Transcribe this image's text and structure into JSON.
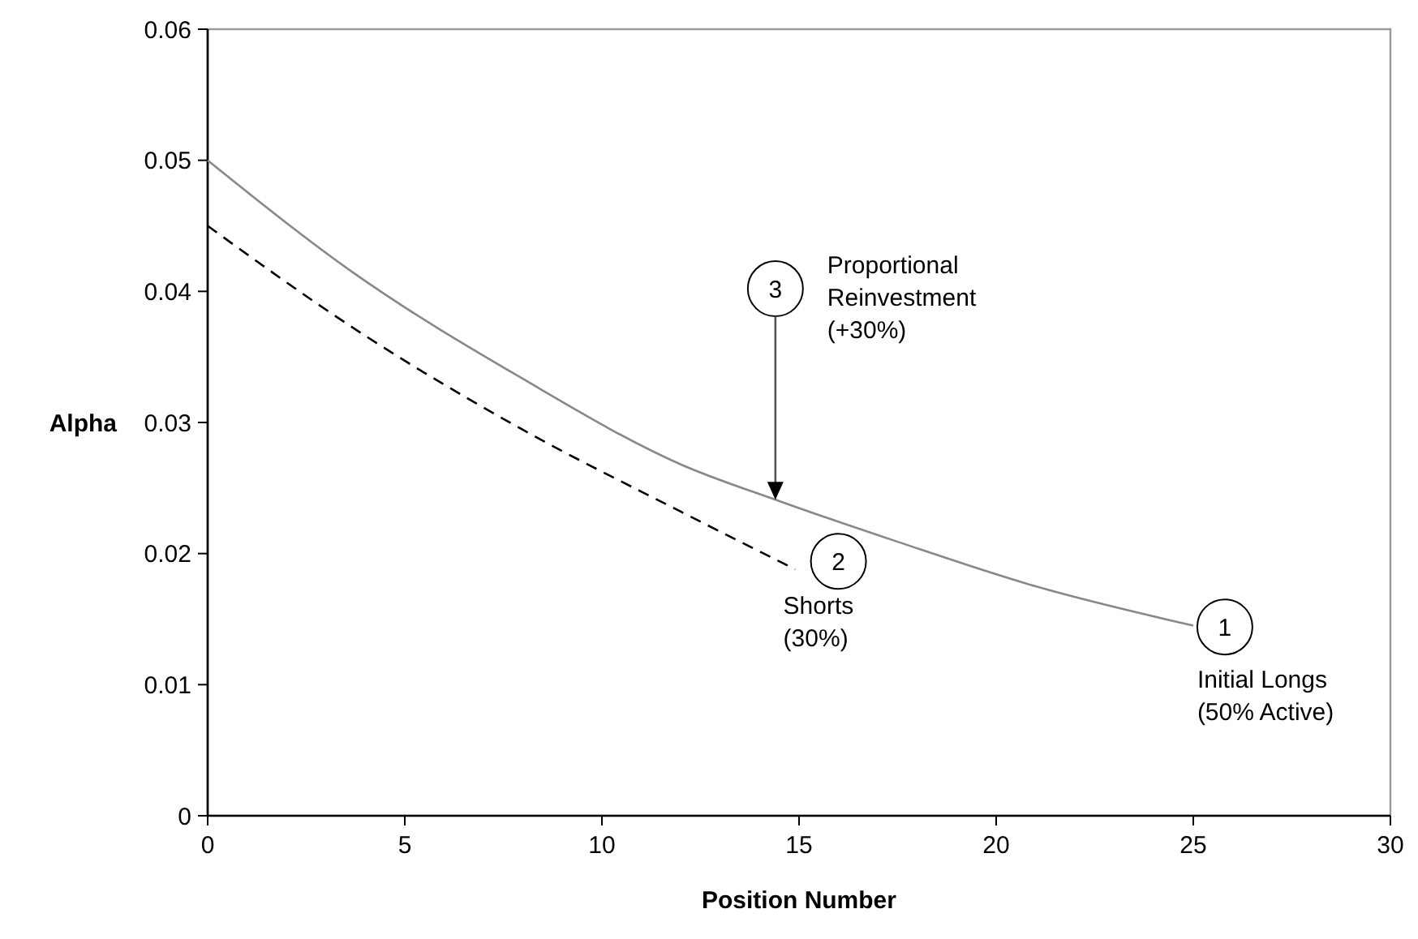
{
  "chart_data": {
    "type": "line",
    "xlabel": "Position Number",
    "ylabel": "Alpha",
    "xlim": [
      0,
      30
    ],
    "xticks": [
      0,
      5,
      10,
      15,
      20,
      25,
      30
    ],
    "ylim": [
      0,
      0.06
    ],
    "yticks": [
      0,
      0.01,
      0.02,
      0.03,
      0.04,
      0.05,
      0.06
    ],
    "grid": false,
    "series": [
      {
        "color": "#888888",
        "line_style": "solid",
        "x": [
          0,
          3.8,
          7.9,
          12,
          14.5,
          17.5,
          21,
          25
        ],
        "values": [
          0.05,
          0.0412,
          0.0335,
          0.0268,
          0.024,
          0.0209,
          0.0175,
          0.0145
        ]
      },
      {
        "color": "#000000",
        "line_style": "dashed",
        "x": [
          0,
          3.8,
          7.9,
          12,
          14.9
        ],
        "values": [
          0.045,
          0.037,
          0.0296,
          0.0232,
          0.0188
        ]
      }
    ],
    "annotations": [
      {
        "text": "1",
        "x": 25.8,
        "y": 0.0144
      },
      "Initial Longs\n(50% Active)",
      {
        "text": "2",
        "x": 16,
        "y": 0.0194
      },
      "Shorts\n(30%)",
      {
        "text": "3",
        "x": 14.4,
        "y": 0.0402
      },
      "Proportional\nReinvestment\n(+30%)"
    ]
  }
}
